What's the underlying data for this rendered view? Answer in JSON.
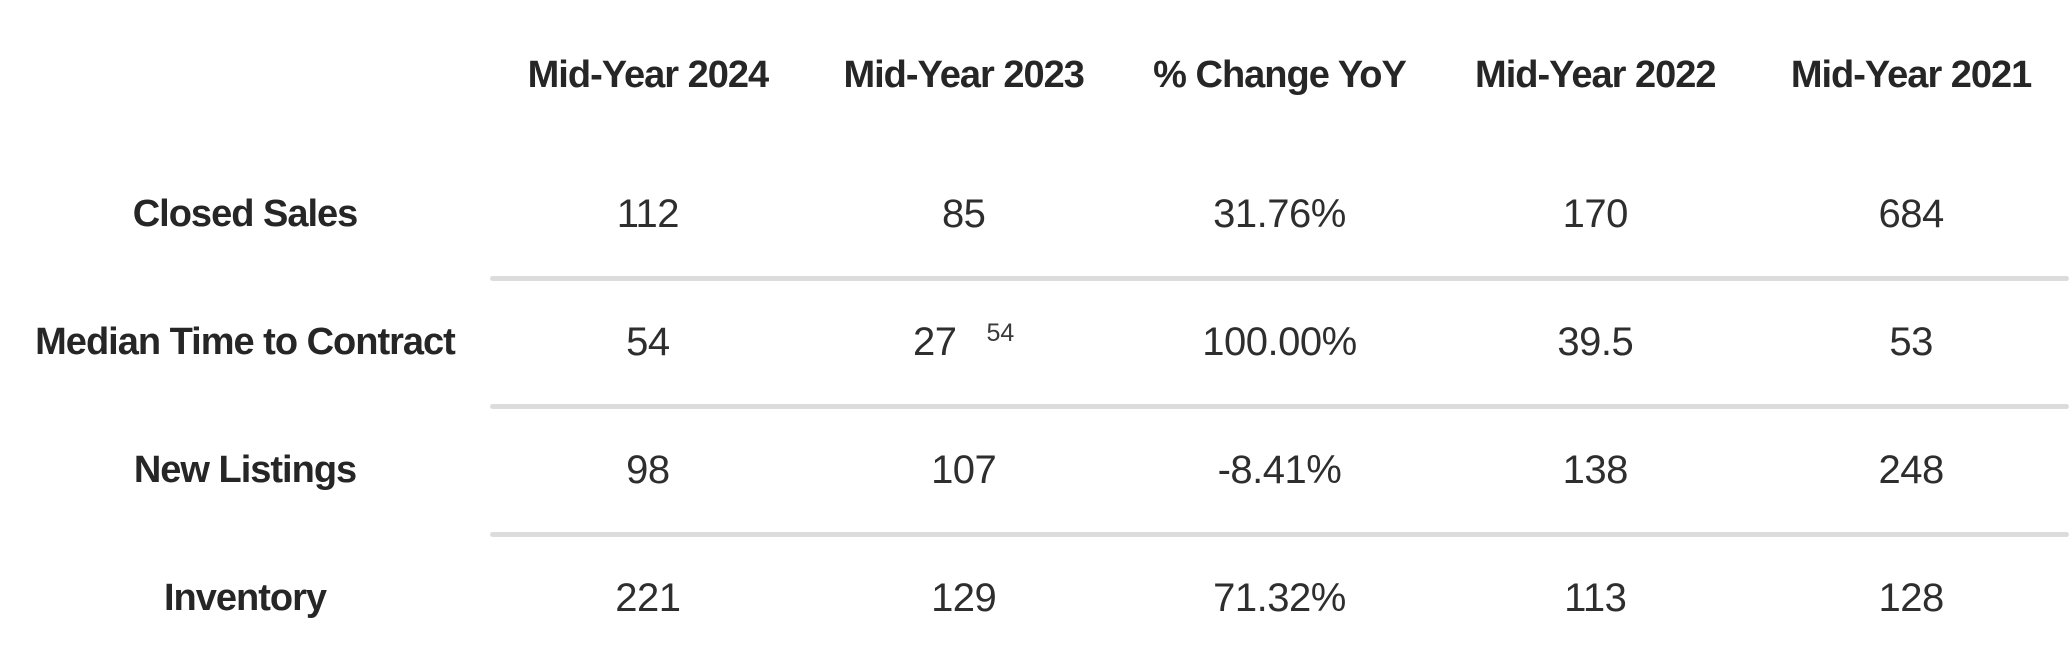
{
  "chart_data": {
    "type": "table",
    "title": "",
    "columns": [
      "Mid-Year 2024",
      "Mid-Year 2023",
      "% Change YoY",
      "Mid-Year 2022",
      "Mid-Year 2021"
    ],
    "rows": [
      {
        "label": "Closed Sales",
        "values": [
          "112",
          "85",
          "31.76%",
          "170",
          "684"
        ]
      },
      {
        "label": "Median Time to Contract",
        "values": [
          "54",
          "27",
          "100.00%",
          "39.5",
          "53"
        ],
        "footnote": "54"
      },
      {
        "label": "New Listings",
        "values": [
          "98",
          "107",
          "-8.41%",
          "138",
          "248"
        ]
      },
      {
        "label": "Inventory",
        "values": [
          "221",
          "129",
          "71.32%",
          "113",
          "128"
        ]
      }
    ]
  },
  "colors": {
    "background": "#ffffff",
    "text": "#2b2b2b",
    "divider": "#dcdcdc"
  }
}
